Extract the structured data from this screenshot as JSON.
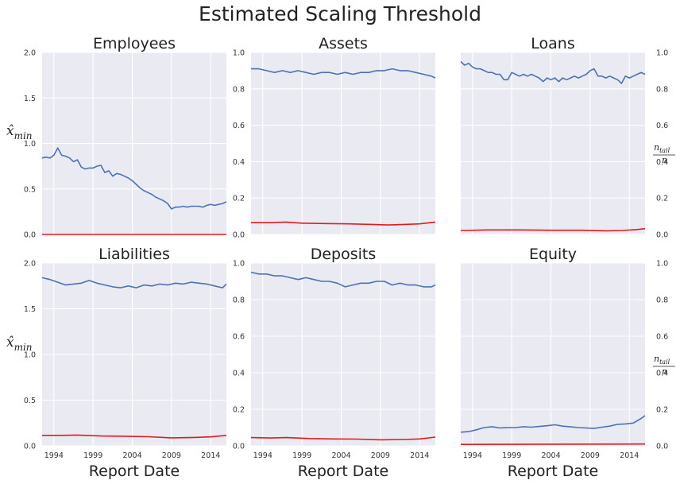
{
  "title": "Estimated Scaling Threshold",
  "left_axis_label": {
    "main": "x̂",
    "sub": "min"
  },
  "right_axis_label": {
    "numerator": "n_tail",
    "denominator": "n"
  },
  "xlabel": "Report Date",
  "colors": {
    "xmin_series": "#4c72b0",
    "ntail_series": "#e31a1c",
    "panel_bg": "#eaeaf2",
    "grid": "#ffffff"
  },
  "chart_data": [
    {
      "type": "line",
      "title": "Employees",
      "x_range": [
        1992.5,
        2016.0
      ],
      "x_ticks": [
        1994,
        1999,
        2004,
        2009,
        2014
      ],
      "left_ylim": [
        0,
        2.0
      ],
      "left_ticks": [
        "0.0",
        "0.5",
        "1.0",
        "1.5",
        "2.0"
      ],
      "grid": true,
      "series": [
        {
          "axis": "left",
          "color": "#4c72b0",
          "x": [
            1992.5,
            1993.0,
            1993.5,
            1994.0,
            1994.5,
            1995.0,
            1995.5,
            1996.0,
            1996.5,
            1997.0,
            1997.5,
            1998.0,
            1998.5,
            1999.0,
            1999.5,
            2000.0,
            2000.5,
            2001.0,
            2001.5,
            2002.0,
            2002.5,
            2003.0,
            2003.5,
            2004.0,
            2004.5,
            2005.0,
            2005.5,
            2006.0,
            2006.5,
            2007.0,
            2007.5,
            2008.0,
            2008.5,
            2009.0,
            2009.5,
            2010.0,
            2010.5,
            2011.0,
            2011.5,
            2012.0,
            2012.5,
            2013.0,
            2013.5,
            2014.0,
            2014.5,
            2015.0,
            2015.5,
            2016.0
          ],
          "y": [
            0.84,
            0.85,
            0.84,
            0.87,
            0.95,
            0.87,
            0.86,
            0.84,
            0.8,
            0.82,
            0.74,
            0.72,
            0.73,
            0.73,
            0.75,
            0.76,
            0.68,
            0.7,
            0.64,
            0.67,
            0.66,
            0.64,
            0.62,
            0.59,
            0.55,
            0.51,
            0.48,
            0.46,
            0.44,
            0.41,
            0.39,
            0.37,
            0.34,
            0.28,
            0.3,
            0.3,
            0.31,
            0.3,
            0.31,
            0.31,
            0.31,
            0.3,
            0.32,
            0.33,
            0.32,
            0.33,
            0.34,
            0.36
          ]
        },
        {
          "axis": "left",
          "color": "#e31a1c",
          "x": [
            1992.5,
            2016.0
          ],
          "y": [
            0.0,
            0.0
          ]
        }
      ]
    },
    {
      "type": "line",
      "title": "Assets",
      "x_range": [
        1992.5,
        2016.0
      ],
      "x_ticks": [
        1994,
        1999,
        2004,
        2009,
        2014
      ],
      "left_ylim": [
        0,
        1.0
      ],
      "left_ticks": [
        "0.0",
        "0.2",
        "0.4",
        "0.6",
        "0.8",
        "1.0"
      ],
      "grid": true,
      "series": [
        {
          "axis": "left",
          "color": "#4c72b0",
          "x": [
            1992.5,
            1993.5,
            1994.5,
            1995.5,
            1996.5,
            1997.5,
            1998.5,
            1999.5,
            2000.5,
            2001.5,
            2002.5,
            2003.5,
            2004.5,
            2005.5,
            2006.5,
            2007.5,
            2008.5,
            2009.5,
            2010.5,
            2011.5,
            2012.5,
            2013.5,
            2014.5,
            2015.5,
            2016.0
          ],
          "y": [
            0.91,
            0.91,
            0.9,
            0.89,
            0.9,
            0.89,
            0.9,
            0.89,
            0.88,
            0.89,
            0.89,
            0.88,
            0.89,
            0.88,
            0.89,
            0.89,
            0.9,
            0.9,
            0.91,
            0.9,
            0.9,
            0.89,
            0.88,
            0.87,
            0.86
          ]
        },
        {
          "axis": "left",
          "color": "#e31a1c",
          "x": [
            1992.5,
            1995.0,
            1997.0,
            1999.0,
            2002.0,
            2005.0,
            2008.0,
            2010.0,
            2012.0,
            2014.0,
            2016.0
          ],
          "y": [
            0.065,
            0.065,
            0.068,
            0.062,
            0.06,
            0.058,
            0.055,
            0.052,
            0.055,
            0.058,
            0.068
          ]
        }
      ]
    },
    {
      "type": "line",
      "title": "Loans",
      "x_range": [
        1992.5,
        2016.0
      ],
      "x_ticks": [
        1994,
        1999,
        2004,
        2009,
        2014
      ],
      "right_ylim": [
        0,
        1.0
      ],
      "right_ticks": [
        "0.0",
        "0.2",
        "0.4",
        "0.6",
        "0.8",
        "1.0"
      ],
      "grid": true,
      "series": [
        {
          "axis": "left",
          "color": "#4c72b0",
          "x": [
            1992.5,
            1993.0,
            1993.5,
            1994.0,
            1994.5,
            1995.0,
            1995.5,
            1996.0,
            1996.5,
            1997.0,
            1997.5,
            1998.0,
            1998.5,
            1999.0,
            1999.5,
            2000.0,
            2000.5,
            2001.0,
            2001.5,
            2002.0,
            2002.5,
            2003.0,
            2003.5,
            2004.0,
            2004.5,
            2005.0,
            2005.5,
            2006.0,
            2006.5,
            2007.0,
            2007.5,
            2008.0,
            2008.5,
            2009.0,
            2009.5,
            2010.0,
            2010.5,
            2011.0,
            2011.5,
            2012.0,
            2012.5,
            2013.0,
            2013.5,
            2014.0,
            2014.5,
            2015.0,
            2015.5,
            2016.0
          ],
          "y": [
            0.95,
            0.93,
            0.94,
            0.92,
            0.91,
            0.91,
            0.9,
            0.89,
            0.89,
            0.88,
            0.88,
            0.85,
            0.85,
            0.89,
            0.88,
            0.87,
            0.88,
            0.87,
            0.88,
            0.87,
            0.86,
            0.84,
            0.86,
            0.85,
            0.86,
            0.84,
            0.86,
            0.85,
            0.86,
            0.87,
            0.86,
            0.87,
            0.88,
            0.9,
            0.91,
            0.87,
            0.87,
            0.86,
            0.87,
            0.86,
            0.85,
            0.83,
            0.87,
            0.86,
            0.87,
            0.88,
            0.89,
            0.88
          ]
        },
        {
          "axis": "left",
          "color": "#e31a1c",
          "x": [
            1992.5,
            1996.0,
            2000.0,
            2004.0,
            2008.0,
            2011.0,
            2013.0,
            2015.0,
            2016.0
          ],
          "y": [
            0.022,
            0.025,
            0.025,
            0.023,
            0.023,
            0.02,
            0.022,
            0.027,
            0.032
          ]
        }
      ]
    },
    {
      "type": "line",
      "title": "Liabilities",
      "x_range": [
        1992.5,
        2016.0
      ],
      "x_ticks": [
        1994,
        1999,
        2004,
        2009,
        2014
      ],
      "left_ylim": [
        0,
        2.0
      ],
      "left_ticks": [
        "0.0",
        "0.5",
        "1.0",
        "1.5",
        "2.0"
      ],
      "grid": true,
      "series": [
        {
          "axis": "left",
          "color": "#4c72b0",
          "x": [
            1992.5,
            1993.5,
            1994.5,
            1995.5,
            1996.5,
            1997.5,
            1998.5,
            1999.5,
            2000.5,
            2001.5,
            2002.5,
            2003.5,
            2004.5,
            2005.5,
            2006.5,
            2007.5,
            2008.5,
            2009.5,
            2010.5,
            2011.5,
            2012.5,
            2013.5,
            2014.5,
            2015.5,
            2016.0
          ],
          "y": [
            1.84,
            1.82,
            1.79,
            1.76,
            1.77,
            1.78,
            1.81,
            1.78,
            1.76,
            1.74,
            1.73,
            1.75,
            1.73,
            1.76,
            1.75,
            1.77,
            1.76,
            1.78,
            1.77,
            1.79,
            1.78,
            1.77,
            1.75,
            1.73,
            1.77
          ]
        },
        {
          "axis": "left",
          "color": "#e31a1c",
          "x": [
            1992.5,
            1995.0,
            1997.0,
            2000.0,
            2003.0,
            2006.0,
            2009.0,
            2012.0,
            2014.0,
            2016.0
          ],
          "y": [
            0.115,
            0.115,
            0.118,
            0.108,
            0.105,
            0.1,
            0.088,
            0.092,
            0.098,
            0.115
          ]
        }
      ]
    },
    {
      "type": "line",
      "title": "Deposits",
      "x_range": [
        1992.5,
        2016.0
      ],
      "x_ticks": [
        1994,
        1999,
        2004,
        2009,
        2014
      ],
      "left_ylim": [
        0,
        1.0
      ],
      "left_ticks": [
        "0.0",
        "0.2",
        "0.4",
        "0.6",
        "0.8",
        "1.0"
      ],
      "grid": true,
      "series": [
        {
          "axis": "left",
          "color": "#4c72b0",
          "x": [
            1992.5,
            1993.5,
            1994.5,
            1995.5,
            1996.5,
            1997.5,
            1998.5,
            1999.5,
            2000.5,
            2001.5,
            2002.5,
            2003.5,
            2004.5,
            2005.5,
            2006.5,
            2007.5,
            2008.5,
            2009.5,
            2010.5,
            2011.5,
            2012.5,
            2013.5,
            2014.5,
            2015.5,
            2016.0
          ],
          "y": [
            0.95,
            0.94,
            0.94,
            0.93,
            0.93,
            0.92,
            0.91,
            0.92,
            0.91,
            0.9,
            0.9,
            0.89,
            0.87,
            0.88,
            0.89,
            0.89,
            0.9,
            0.9,
            0.88,
            0.89,
            0.88,
            0.88,
            0.87,
            0.87,
            0.88
          ]
        },
        {
          "axis": "left",
          "color": "#e31a1c",
          "x": [
            1992.5,
            1995.0,
            1997.0,
            2000.0,
            2003.0,
            2006.0,
            2009.0,
            2012.0,
            2014.0,
            2016.0
          ],
          "y": [
            0.045,
            0.043,
            0.045,
            0.04,
            0.038,
            0.037,
            0.033,
            0.035,
            0.038,
            0.048
          ]
        }
      ]
    },
    {
      "type": "line",
      "title": "Equity",
      "x_range": [
        1992.5,
        2016.0
      ],
      "x_ticks": [
        1994,
        1999,
        2004,
        2009,
        2014
      ],
      "right_ylim": [
        0,
        1.0
      ],
      "right_ticks": [
        "0.0",
        "0.2",
        "0.4",
        "0.6",
        "0.8",
        "1.0"
      ],
      "grid": true,
      "series": [
        {
          "axis": "left",
          "color": "#4c72b0",
          "x": [
            1992.5,
            1993.5,
            1994.5,
            1995.5,
            1996.5,
            1997.5,
            1998.5,
            1999.5,
            2000.5,
            2001.5,
            2002.5,
            2003.5,
            2004.5,
            2005.5,
            2006.5,
            2007.5,
            2008.5,
            2009.5,
            2010.5,
            2011.5,
            2012.5,
            2013.5,
            2014.5,
            2015.5,
            2016.0
          ],
          "y": [
            0.075,
            0.078,
            0.088,
            0.1,
            0.105,
            0.098,
            0.1,
            0.1,
            0.105,
            0.102,
            0.106,
            0.11,
            0.115,
            0.108,
            0.104,
            0.1,
            0.098,
            0.095,
            0.102,
            0.108,
            0.118,
            0.12,
            0.125,
            0.15,
            0.165
          ]
        },
        {
          "axis": "left",
          "color": "#e31a1c",
          "x": [
            1992.5,
            2016.0
          ],
          "y": [
            0.008,
            0.01
          ]
        }
      ]
    }
  ]
}
